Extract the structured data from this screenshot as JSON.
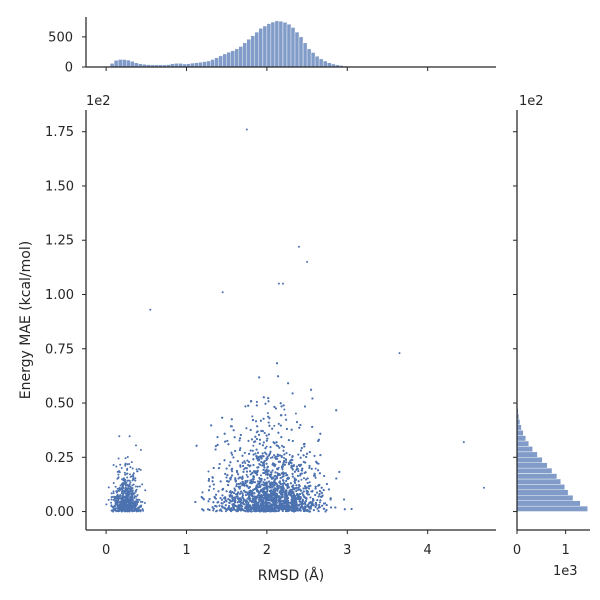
{
  "chart_data": {
    "type": "scatter",
    "variant": "jointplot with marginal histograms",
    "xlabel": "RMSD (Å)",
    "ylabel": "Energy MAE (kcal/mol)",
    "xlim": [
      -0.25,
      4.85
    ],
    "ylim": [
      -8.5,
      185
    ],
    "x_ticks": [
      0,
      1,
      2,
      3,
      4
    ],
    "y_ticks": [
      0,
      25,
      50,
      75,
      100,
      125,
      150,
      175
    ],
    "y_tick_labels": [
      "0.00",
      "0.25",
      "0.50",
      "0.75",
      "1.00",
      "1.25",
      "1.50",
      "1.75"
    ],
    "y_offset_text": "1e2",
    "grid": false,
    "color": "#4c72b0",
    "approx_n_points": 20000,
    "scatter_clusters": [
      {
        "x_center": 0.25,
        "x_spread": 0.12,
        "y_scale": 6,
        "share": 0.13
      },
      {
        "x_center": 2.05,
        "x_spread": 0.45,
        "y_scale": 11,
        "share": 0.87
      }
    ],
    "outliers": [
      {
        "x": 1.75,
        "y": 176
      },
      {
        "x": 2.4,
        "y": 122
      },
      {
        "x": 2.5,
        "y": 115
      },
      {
        "x": 2.15,
        "y": 105
      },
      {
        "x": 2.2,
        "y": 105
      },
      {
        "x": 0.55,
        "y": 93
      },
      {
        "x": 1.45,
        "y": 101
      },
      {
        "x": 4.45,
        "y": 32
      },
      {
        "x": 4.7,
        "y": 11
      },
      {
        "x": 3.65,
        "y": 73
      }
    ],
    "top_histogram": {
      "orientation": "vertical",
      "ylabel_ticks": [
        0,
        500
      ],
      "ylim": [
        0,
        830
      ],
      "bin_width": 0.05,
      "bin_start": 0.0,
      "counts": [
        10,
        60,
        110,
        125,
        125,
        115,
        95,
        70,
        55,
        45,
        40,
        35,
        35,
        35,
        35,
        40,
        55,
        60,
        60,
        50,
        55,
        65,
        70,
        80,
        90,
        100,
        125,
        155,
        185,
        215,
        245,
        270,
        300,
        340,
        400,
        460,
        520,
        580,
        640,
        680,
        720,
        745,
        765,
        760,
        740,
        710,
        655,
        580,
        500,
        400,
        300,
        240,
        180,
        135,
        100,
        70,
        50,
        35,
        25,
        15,
        10,
        8,
        5,
        3,
        2,
        2,
        1,
        1,
        0,
        0,
        0,
        0,
        0,
        0,
        0,
        0,
        0,
        0,
        0,
        0,
        0,
        0,
        0,
        0,
        0,
        0,
        0,
        0,
        0,
        1,
        0,
        0,
        1
      ]
    },
    "right_histogram": {
      "orientation": "horizontal",
      "xlabel_ticks": [
        0,
        1
      ],
      "offset_text": "1e3",
      "top_offset_text": "1e2",
      "xlim": [
        0,
        1500
      ],
      "bin_width": 2.5,
      "bin_start": 0.0,
      "counts": [
        1450,
        1300,
        1150,
        1050,
        980,
        900,
        820,
        720,
        620,
        520,
        420,
        320,
        240,
        180,
        130,
        90,
        60,
        40,
        25,
        15,
        10,
        6,
        4,
        2
      ]
    }
  }
}
